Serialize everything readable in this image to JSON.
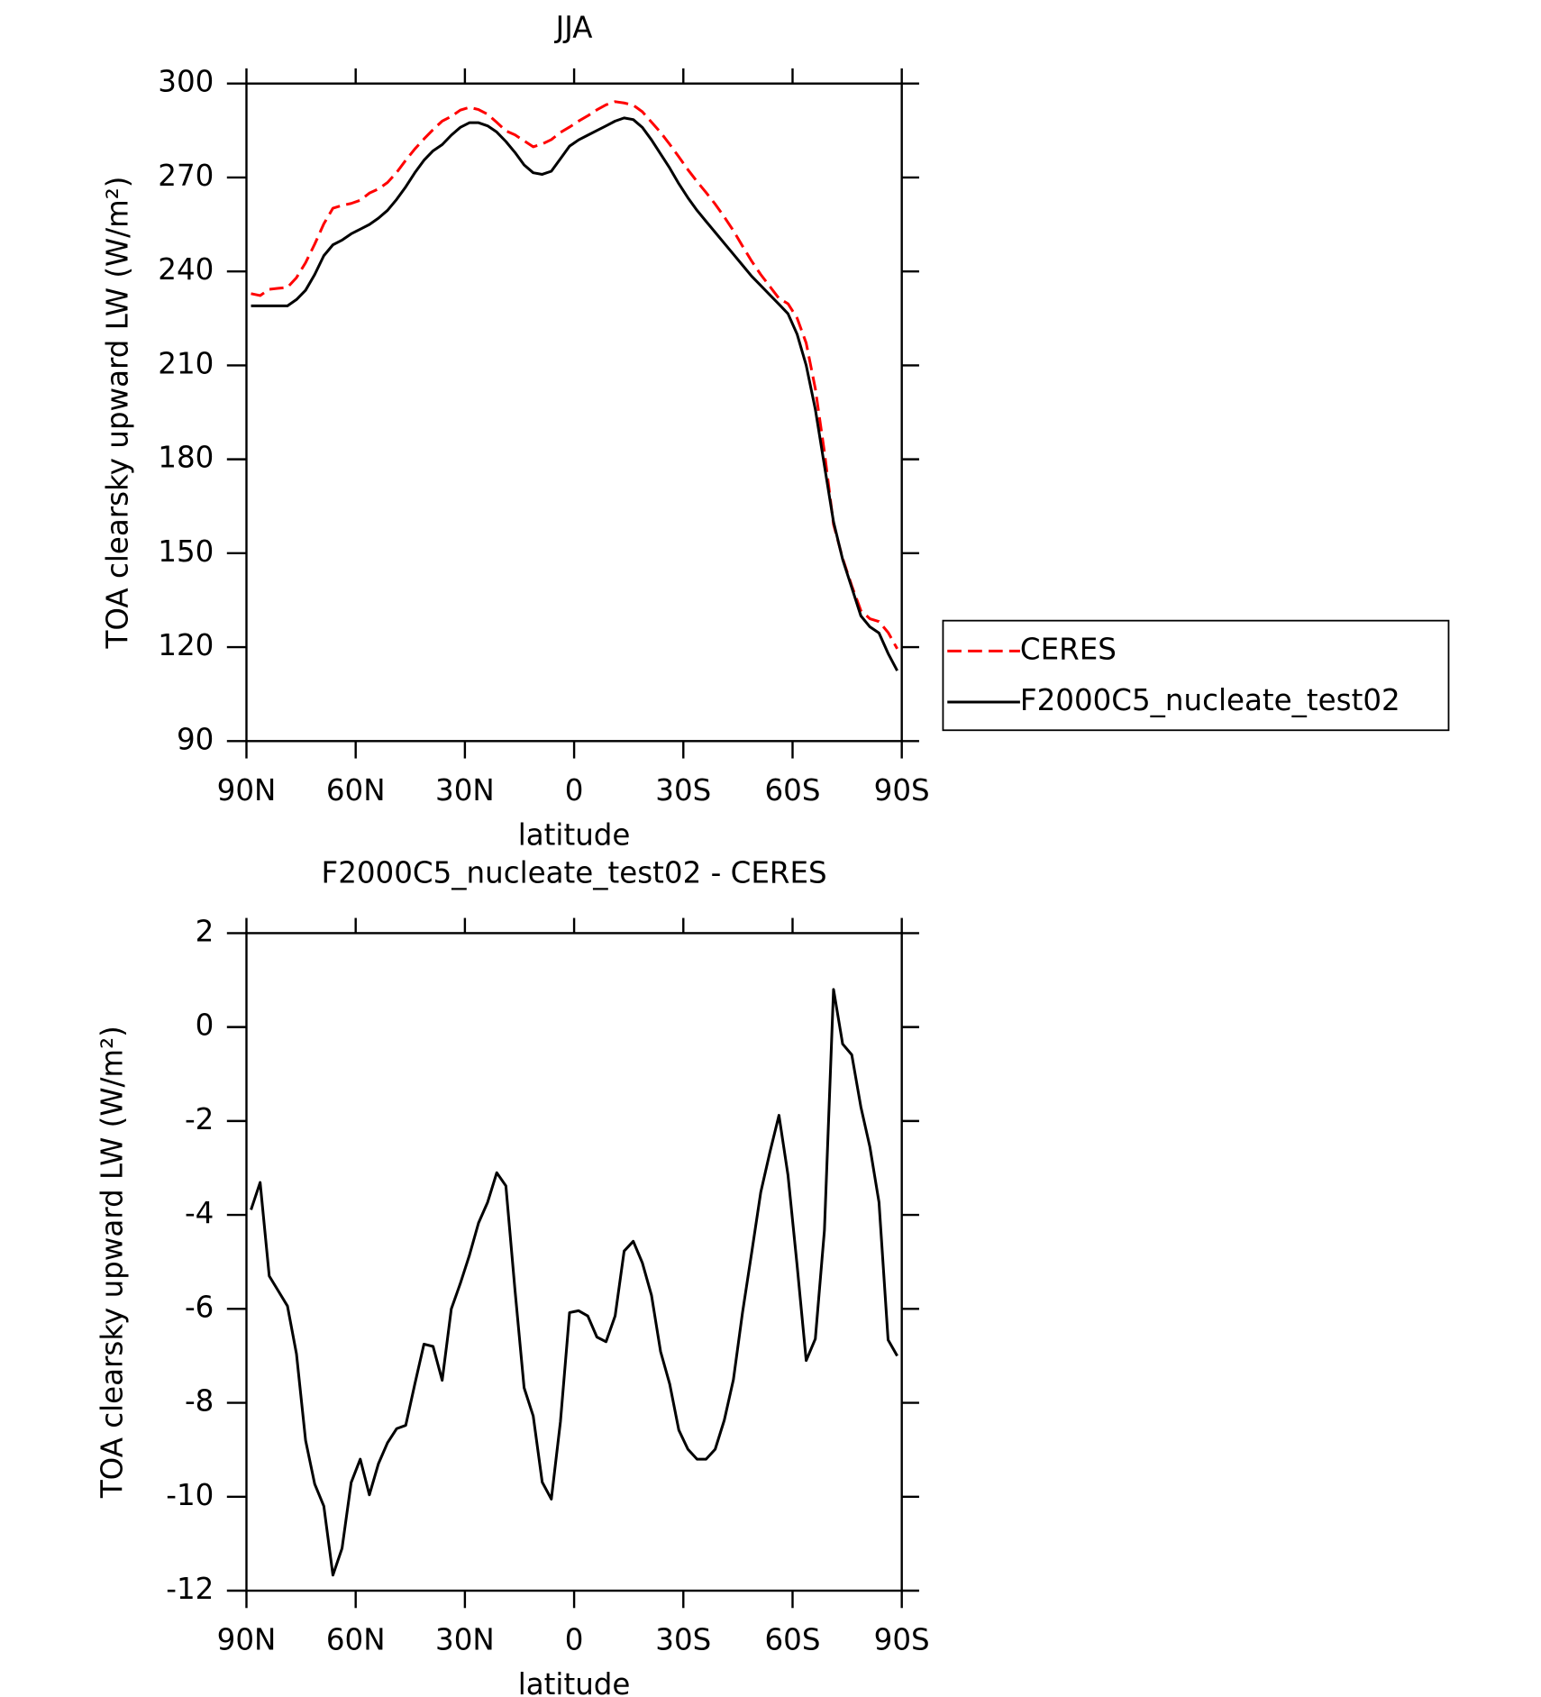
{
  "chart_data": [
    {
      "type": "line",
      "title": "JJA",
      "xlabel": "latitude",
      "ylabel": "TOA clearsky upward LW (W/m²)",
      "x": [
        88.75,
        86.25,
        83.75,
        81.25,
        78.75,
        76.25,
        73.75,
        71.25,
        68.75,
        66.25,
        63.75,
        61.25,
        58.75,
        56.25,
        53.75,
        51.25,
        48.75,
        46.25,
        43.75,
        41.25,
        38.75,
        36.25,
        33.75,
        31.25,
        28.75,
        26.25,
        23.75,
        21.25,
        18.75,
        16.25,
        13.75,
        11.25,
        8.75,
        6.25,
        3.75,
        1.25,
        -1.25,
        -3.75,
        -6.25,
        -8.75,
        -11.25,
        -13.75,
        -16.25,
        -18.75,
        -21.25,
        -23.75,
        -26.25,
        -28.75,
        -31.25,
        -33.75,
        -36.25,
        -38.75,
        -41.25,
        -43.75,
        -46.25,
        -48.75,
        -51.25,
        -53.75,
        -56.25,
        -58.75,
        -61.25,
        -63.75,
        -66.25,
        -68.75,
        -71.25,
        -73.75,
        -76.25,
        -78.75,
        -81.25,
        -83.75,
        -86.25,
        -88.75
      ],
      "series": [
        {
          "name": "CERES",
          "color": "#ff0000",
          "dashed": true,
          "values": [
            232.9,
            232.3,
            234.3,
            234.6,
            234.9,
            238.0,
            242.8,
            248.7,
            255.2,
            260.2,
            261.1,
            261.7,
            262.7,
            265.0,
            266.3,
            268.4,
            271.6,
            275.5,
            279.1,
            282.3,
            285.3,
            288.0,
            289.5,
            291.5,
            292.4,
            291.7,
            290.2,
            287.6,
            284.9,
            283.6,
            281.7,
            279.8,
            280.7,
            282.1,
            284.4,
            286.1,
            288.0,
            289.7,
            291.6,
            293.2,
            294.2,
            293.8,
            293.1,
            291.0,
            287.7,
            284.4,
            280.6,
            276.6,
            272.5,
            268.7,
            265.2,
            261.5,
            257.4,
            253.0,
            248.1,
            243.3,
            239.0,
            235.2,
            231.4,
            229.7,
            225.1,
            217.1,
            202.6,
            182.3,
            159.2,
            148.4,
            139.6,
            131.7,
            129.1,
            128.2,
            124.7,
            119.5
          ]
        },
        {
          "name": "F2000C5_nucleate_test02",
          "color": "#000000",
          "dashed": false,
          "values": [
            229,
            229,
            229,
            229,
            229,
            231,
            234,
            239,
            245,
            248.5,
            250,
            252,
            253.5,
            255,
            257,
            259.5,
            263,
            267,
            271.5,
            275.5,
            278.5,
            280.5,
            283.5,
            286,
            287.5,
            287.5,
            286.5,
            284.5,
            281.5,
            278,
            274,
            271.5,
            271,
            272,
            276,
            280,
            282,
            283.5,
            285,
            286.5,
            288,
            289,
            288.5,
            286,
            282,
            277.5,
            273,
            268,
            263.5,
            259.5,
            256,
            252.5,
            249,
            245.5,
            242,
            238.5,
            235.5,
            232.5,
            229.5,
            226.5,
            220,
            210,
            196,
            178,
            160,
            148,
            139,
            130,
            126.5,
            124.5,
            118,
            112.5
          ]
        }
      ],
      "xlim": [
        90,
        -90
      ],
      "xticks": [
        {
          "value": 90,
          "label": "90N"
        },
        {
          "value": 60,
          "label": "60N"
        },
        {
          "value": 30,
          "label": "30N"
        },
        0,
        {
          "value": -30,
          "label": "30S"
        },
        {
          "value": -60,
          "label": "60S"
        },
        {
          "value": -90,
          "label": "90S"
        }
      ],
      "ylim": [
        90,
        300
      ],
      "yticks": [
        90,
        120,
        150,
        180,
        210,
        240,
        270,
        300
      ],
      "legend": "right"
    },
    {
      "type": "line",
      "title": "F2000C5_nucleate_test02 - CERES",
      "xlabel": "latitude",
      "ylabel": "TOA clearsky upward LW (W/m²)",
      "x": [
        88.75,
        86.25,
        83.75,
        81.25,
        78.75,
        76.25,
        73.75,
        71.25,
        68.75,
        66.25,
        63.75,
        61.25,
        58.75,
        56.25,
        53.75,
        51.25,
        48.75,
        46.25,
        43.75,
        41.25,
        38.75,
        36.25,
        33.75,
        31.25,
        28.75,
        26.25,
        23.75,
        21.25,
        18.75,
        16.25,
        13.75,
        11.25,
        8.75,
        6.25,
        3.75,
        1.25,
        -1.25,
        -3.75,
        -6.25,
        -8.75,
        -11.25,
        -13.75,
        -16.25,
        -18.75,
        -21.25,
        -23.75,
        -26.25,
        -28.75,
        -31.25,
        -33.75,
        -36.25,
        -38.75,
        -41.25,
        -43.75,
        -46.25,
        -48.75,
        -51.25,
        -53.75,
        -56.25,
        -58.75,
        -61.25,
        -63.75,
        -66.25,
        -68.75,
        -71.25,
        -73.75,
        -76.25,
        -78.75,
        -81.25,
        -83.75,
        -86.25,
        -88.75
      ],
      "color": "#000000",
      "values": [
        -3.89,
        -3.31,
        -5.3,
        -5.62,
        -5.94,
        -6.96,
        -8.8,
        -9.73,
        -10.2,
        -11.67,
        -11.1,
        -9.7,
        -9.2,
        -9.96,
        -9.3,
        -8.85,
        -8.55,
        -8.48,
        -7.6,
        -6.75,
        -6.8,
        -7.52,
        -6.0,
        -5.46,
        -4.86,
        -4.17,
        -3.73,
        -3.1,
        -3.38,
        -5.6,
        -7.68,
        -8.28,
        -9.69,
        -10.05,
        -8.4,
        -6.08,
        -6.04,
        -6.15,
        -6.6,
        -6.7,
        -6.15,
        -4.77,
        -4.56,
        -5.02,
        -5.71,
        -6.91,
        -7.6,
        -8.58,
        -8.99,
        -9.2,
        -9.2,
        -8.99,
        -8.37,
        -7.51,
        -6.08,
        -4.81,
        -3.52,
        -2.67,
        -1.88,
        -3.15,
        -5.07,
        -7.1,
        -6.64,
        -4.33,
        0.8,
        -0.36,
        -0.59,
        -1.7,
        -2.55,
        -3.73,
        -6.66,
        -7.0
      ],
      "xlim": [
        90,
        -90
      ],
      "xticks": [
        {
          "value": 90,
          "label": "90N"
        },
        {
          "value": 60,
          "label": "60N"
        },
        {
          "value": 30,
          "label": "30N"
        },
        0,
        {
          "value": -30,
          "label": "30S"
        },
        {
          "value": -60,
          "label": "60S"
        },
        {
          "value": -90,
          "label": "90S"
        }
      ],
      "ylim": [
        -12,
        2
      ],
      "yticks": [
        -12,
        -10,
        -8,
        -6,
        -4,
        -2,
        0,
        2
      ]
    }
  ]
}
